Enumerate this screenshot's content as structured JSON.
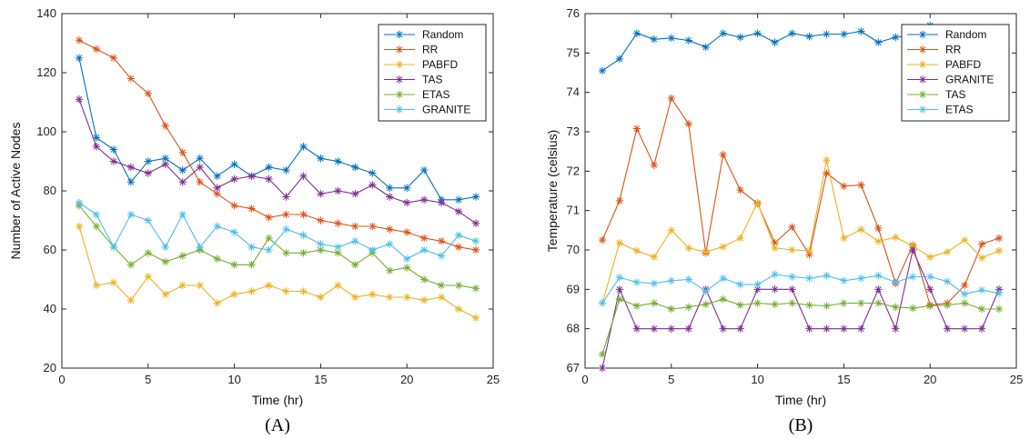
{
  "chart_data": [
    {
      "type": "line",
      "caption": "(A)",
      "xlabel": "Time (hr)",
      "ylabel": "Number of Active Nodes",
      "xlim": [
        0,
        25
      ],
      "ylim": [
        20,
        140
      ],
      "xticks": [
        0,
        5,
        10,
        15,
        20,
        25
      ],
      "yticks": [
        20,
        40,
        60,
        80,
        100,
        120,
        140
      ],
      "grid": false,
      "legend_position": "top-right",
      "x": [
        1,
        2,
        3,
        4,
        5,
        6,
        7,
        8,
        9,
        10,
        11,
        12,
        13,
        14,
        15,
        16,
        17,
        18,
        19,
        20,
        21,
        22,
        23,
        24
      ],
      "series": [
        {
          "name": "Random",
          "color": "#0072BD",
          "values": [
            125,
            98,
            94,
            83,
            90,
            91,
            87,
            91,
            85,
            89,
            85,
            88,
            87,
            95,
            91,
            90,
            88,
            86,
            81,
            81,
            87,
            77,
            77,
            78
          ]
        },
        {
          "name": "RR",
          "color": "#D95319",
          "values": [
            131,
            128,
            125,
            118,
            113,
            102,
            93,
            83,
            79,
            75,
            74,
            71,
            72,
            72,
            70,
            69,
            68,
            68,
            67,
            66,
            64,
            63,
            61,
            60
          ]
        },
        {
          "name": "PABFD",
          "color": "#EDB120",
          "values": [
            68,
            48,
            49,
            43,
            51,
            45,
            48,
            48,
            42,
            45,
            46,
            48,
            46,
            46,
            44,
            48,
            44,
            45,
            44,
            44,
            43,
            44,
            40,
            37
          ]
        },
        {
          "name": "TAS",
          "color": "#7E2F8E",
          "values": [
            111,
            95,
            90,
            88,
            86,
            89,
            83,
            88,
            81,
            84,
            85,
            84,
            78,
            85,
            79,
            80,
            79,
            82,
            78,
            76,
            77,
            76,
            73,
            69
          ]
        },
        {
          "name": "ETAS",
          "color": "#77AC30",
          "values": [
            75,
            68,
            61,
            55,
            59,
            56,
            58,
            60,
            57,
            55,
            55,
            64,
            59,
            59,
            60,
            59,
            55,
            59,
            53,
            54,
            50,
            48,
            48,
            47
          ]
        },
        {
          "name": "GRANITE",
          "color": "#4DBEEE",
          "values": [
            76,
            72,
            61,
            72,
            70,
            61,
            72,
            61,
            68,
            66,
            61,
            60,
            67,
            65,
            62,
            61,
            63,
            60,
            62,
            57,
            60,
            58,
            65,
            63
          ]
        }
      ]
    },
    {
      "type": "line",
      "caption": "(B)",
      "xlabel": "Time (hr)",
      "ylabel": "Temperature (celsius)",
      "xlim": [
        0,
        25
      ],
      "ylim": [
        67,
        76
      ],
      "xticks": [
        0,
        5,
        10,
        15,
        20,
        25
      ],
      "yticks": [
        67,
        68,
        69,
        70,
        71,
        72,
        73,
        74,
        75,
        76
      ],
      "grid": false,
      "legend_position": "top-right",
      "x": [
        1,
        2,
        3,
        4,
        5,
        6,
        7,
        8,
        9,
        10,
        11,
        12,
        13,
        14,
        15,
        16,
        17,
        18,
        19,
        20,
        21,
        22,
        23,
        24
      ],
      "series": [
        {
          "name": "Random",
          "color": "#0072BD",
          "values": [
            74.55,
            74.85,
            75.5,
            75.35,
            75.38,
            75.32,
            75.15,
            75.5,
            75.4,
            75.5,
            75.27,
            75.5,
            75.42,
            75.48,
            75.48,
            75.55,
            75.27,
            75.4,
            75.45,
            75.7,
            75.55,
            75.55,
            75.5,
            75.6
          ]
        },
        {
          "name": "RR",
          "color": "#D95319",
          "values": [
            70.25,
            71.25,
            73.08,
            72.15,
            73.85,
            73.2,
            69.92,
            72.42,
            71.52,
            71.18,
            70.18,
            70.58,
            69.88,
            71.95,
            71.62,
            71.65,
            70.55,
            69.15,
            70.12,
            68.6,
            68.65,
            69.1,
            70.15,
            70.3
          ]
        },
        {
          "name": "PABFD",
          "color": "#EDB120",
          "values": [
            68.65,
            70.18,
            69.98,
            69.82,
            70.5,
            70.05,
            69.95,
            70.08,
            70.3,
            71.2,
            70.05,
            70.0,
            69.98,
            72.28,
            70.3,
            70.52,
            70.22,
            70.32,
            70.1,
            69.82,
            69.95,
            70.25,
            69.8,
            69.98
          ]
        },
        {
          "name": "GRANITE",
          "color": "#7E2F8E",
          "values": [
            67,
            69,
            68,
            68,
            68,
            68,
            69,
            68,
            68,
            69,
            69,
            69,
            68,
            68,
            68,
            68,
            69,
            68,
            70,
            69,
            68,
            68,
            68,
            69
          ]
        },
        {
          "name": "TAS",
          "color": "#77AC30",
          "values": [
            67.35,
            68.75,
            68.58,
            68.65,
            68.5,
            68.55,
            68.62,
            68.75,
            68.6,
            68.65,
            68.62,
            68.65,
            68.6,
            68.58,
            68.65,
            68.65,
            68.65,
            68.55,
            68.52,
            68.58,
            68.6,
            68.65,
            68.5,
            68.5
          ]
        },
        {
          "name": "ETAS",
          "color": "#4DBEEE",
          "values": [
            68.65,
            69.3,
            69.18,
            69.15,
            69.22,
            69.25,
            68.95,
            69.28,
            69.12,
            69.12,
            69.38,
            69.32,
            69.28,
            69.35,
            69.22,
            69.28,
            69.35,
            69.18,
            69.32,
            69.32,
            69.2,
            68.88,
            68.98,
            68.9
          ]
        }
      ]
    }
  ]
}
